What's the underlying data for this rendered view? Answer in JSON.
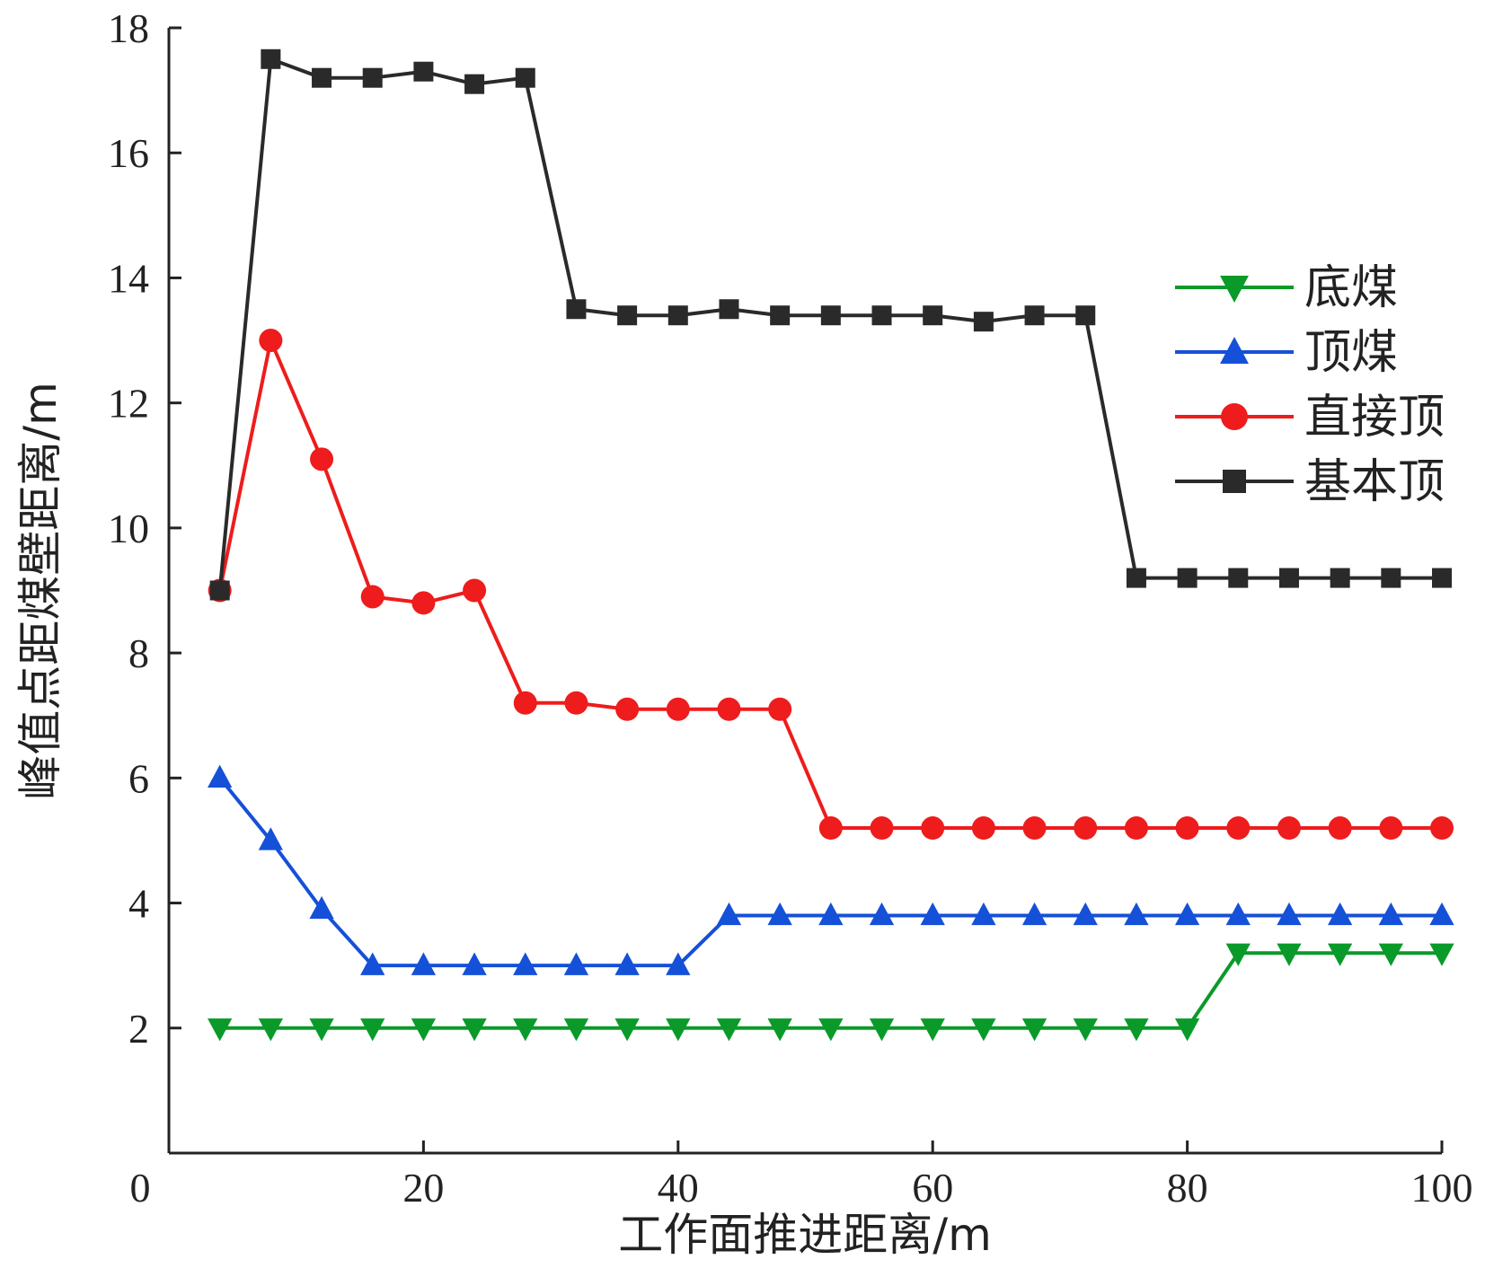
{
  "chart_data": {
    "type": "line",
    "title": "",
    "xlabel": "工作面推进距离/m",
    "ylabel": "峰值点距煤壁距离/m",
    "xlim": [
      0,
      100
    ],
    "ylim": [
      0,
      18
    ],
    "x_ticks": [
      0,
      20,
      40,
      60,
      80,
      100
    ],
    "y_ticks": [
      2,
      4,
      6,
      8,
      10,
      12,
      14,
      16,
      18
    ],
    "x_tick_labels": [
      "0",
      "20",
      "40",
      "60",
      "80",
      "100"
    ],
    "y_tick_labels": [
      "2",
      "4",
      "6",
      "8",
      "10",
      "12",
      "14",
      "16",
      "18"
    ],
    "legend_position": "right",
    "x": [
      4,
      8,
      12,
      16,
      20,
      24,
      28,
      32,
      36,
      40,
      44,
      48,
      52,
      56,
      60,
      64,
      68,
      72,
      76,
      80,
      84,
      88,
      92,
      96,
      100
    ],
    "series": [
      {
        "name": "底煤",
        "color": "#0a9a2a",
        "marker": "triangle-down",
        "values": [
          2,
          2,
          2,
          2,
          2,
          2,
          2,
          2,
          2,
          2,
          2,
          2,
          2,
          2,
          2,
          2,
          2,
          2,
          2,
          2,
          3.2,
          3.2,
          3.2,
          3.2,
          3.2
        ]
      },
      {
        "name": "顶煤",
        "color": "#1550d8",
        "marker": "triangle-up",
        "values": [
          6,
          5,
          3.9,
          3,
          3,
          3,
          3,
          3,
          3,
          3,
          3.8,
          3.8,
          3.8,
          3.8,
          3.8,
          3.8,
          3.8,
          3.8,
          3.8,
          3.8,
          3.8,
          3.8,
          3.8,
          3.8,
          3.8
        ]
      },
      {
        "name": "直接顶",
        "color": "#ee1c1c",
        "marker": "circle",
        "values": [
          9,
          13,
          11.1,
          8.9,
          8.8,
          9,
          7.2,
          7.2,
          7.1,
          7.1,
          7.1,
          7.1,
          5.2,
          5.2,
          5.2,
          5.2,
          5.2,
          5.2,
          5.2,
          5.2,
          5.2,
          5.2,
          5.2,
          5.2,
          5.2
        ]
      },
      {
        "name": "基本顶",
        "color": "#2a2a2a",
        "marker": "square",
        "values": [
          9,
          17.5,
          17.2,
          17.2,
          17.3,
          17.1,
          17.2,
          13.5,
          13.4,
          13.4,
          13.5,
          13.4,
          13.4,
          13.4,
          13.4,
          13.3,
          13.4,
          13.4,
          9.2,
          9.2,
          9.2,
          9.2,
          9.2,
          9.2,
          9.2
        ]
      }
    ]
  }
}
